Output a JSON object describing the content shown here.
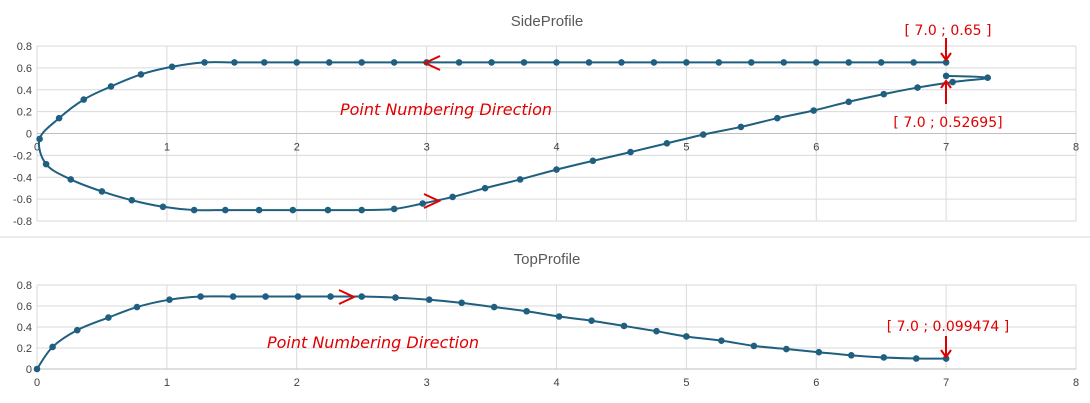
{
  "chart_data": [
    {
      "type": "scatter",
      "title": "SideProfile",
      "xlabel": "",
      "ylabel": "",
      "xlim": [
        0,
        8
      ],
      "ylim": [
        -0.8,
        0.8
      ],
      "xticks": [
        "0",
        "1",
        "2",
        "3",
        "4",
        "5",
        "6",
        "7",
        "8"
      ],
      "yticks": [
        "-0.8",
        "-0.6",
        "-0.4",
        "-0.2",
        "0",
        "0.2",
        "0.4",
        "0.6",
        "0.8"
      ],
      "grid": true,
      "legend": "none",
      "color": "#1f5f7f",
      "series": [
        {
          "points": [
            [
              7.0,
              0.65
            ],
            [
              6.75,
              0.65
            ],
            [
              6.5,
              0.65
            ],
            [
              6.25,
              0.65
            ],
            [
              6.0,
              0.65
            ],
            [
              5.75,
              0.65
            ],
            [
              5.5,
              0.65
            ],
            [
              5.25,
              0.65
            ],
            [
              5.0,
              0.65
            ],
            [
              4.75,
              0.65
            ],
            [
              4.5,
              0.65
            ],
            [
              4.25,
              0.65
            ],
            [
              4.0,
              0.65
            ],
            [
              3.75,
              0.65
            ],
            [
              3.5,
              0.65
            ],
            [
              3.25,
              0.65
            ],
            [
              3.0,
              0.65
            ],
            [
              2.75,
              0.65
            ],
            [
              2.5,
              0.65
            ],
            [
              2.25,
              0.65
            ],
            [
              2.0,
              0.65
            ],
            [
              1.75,
              0.65
            ],
            [
              1.52,
              0.65
            ],
            [
              1.29,
              0.65
            ],
            [
              1.04,
              0.61
            ],
            [
              0.8,
              0.54
            ],
            [
              0.57,
              0.43
            ],
            [
              0.36,
              0.31
            ],
            [
              0.17,
              0.14
            ],
            [
              0.02,
              -0.05
            ],
            [
              0.07,
              -0.28
            ],
            [
              0.26,
              -0.42
            ],
            [
              0.5,
              -0.53
            ],
            [
              0.73,
              -0.61
            ],
            [
              0.97,
              -0.67
            ],
            [
              1.21,
              -0.7
            ],
            [
              1.45,
              -0.7
            ],
            [
              1.71,
              -0.7
            ],
            [
              1.97,
              -0.7
            ],
            [
              2.24,
              -0.7
            ],
            [
              2.5,
              -0.7
            ],
            [
              2.75,
              -0.69
            ],
            [
              2.97,
              -0.64
            ],
            [
              3.2,
              -0.58
            ],
            [
              3.45,
              -0.5
            ],
            [
              3.72,
              -0.42
            ],
            [
              4.0,
              -0.33
            ],
            [
              4.28,
              -0.25
            ],
            [
              4.57,
              -0.17
            ],
            [
              4.85,
              -0.09
            ],
            [
              5.13,
              -0.01
            ],
            [
              5.42,
              0.06
            ],
            [
              5.7,
              0.14
            ],
            [
              5.98,
              0.21
            ],
            [
              6.25,
              0.29
            ],
            [
              6.52,
              0.36
            ],
            [
              6.78,
              0.42
            ],
            [
              7.05,
              0.47
            ],
            [
              7.32,
              0.51
            ],
            [
              7.0,
              0.52695
            ]
          ]
        }
      ],
      "annotations": [
        {
          "text": "[ 7.0 ; 0.65 ]"
        },
        {
          "text": "[ 7.0 ; 0.52695]"
        },
        {
          "text": "Point Numbering Direction"
        }
      ]
    },
    {
      "type": "scatter",
      "title": "TopProfile",
      "xlabel": "",
      "ylabel": "",
      "xlim": [
        0,
        8
      ],
      "ylim": [
        0,
        0.8
      ],
      "xticks": [
        "0",
        "1",
        "2",
        "3",
        "4",
        "5",
        "6",
        "7",
        "8"
      ],
      "yticks": [
        "0",
        "0.2",
        "0.4",
        "0.6",
        "0.8"
      ],
      "grid": true,
      "legend": "none",
      "color": "#1f5f7f",
      "series": [
        {
          "points": [
            [
              0.0,
              0.0
            ],
            [
              0.12,
              0.21
            ],
            [
              0.31,
              0.37
            ],
            [
              0.55,
              0.49
            ],
            [
              0.77,
              0.59
            ],
            [
              1.02,
              0.66
            ],
            [
              1.26,
              0.69
            ],
            [
              1.51,
              0.69
            ],
            [
              1.76,
              0.69
            ],
            [
              2.01,
              0.69
            ],
            [
              2.26,
              0.69
            ],
            [
              2.5,
              0.69
            ],
            [
              2.76,
              0.68
            ],
            [
              3.02,
              0.66
            ],
            [
              3.27,
              0.63
            ],
            [
              3.52,
              0.59
            ],
            [
              3.77,
              0.55
            ],
            [
              4.02,
              0.5
            ],
            [
              4.27,
              0.46
            ],
            [
              4.52,
              0.41
            ],
            [
              4.77,
              0.36
            ],
            [
              5.0,
              0.31
            ],
            [
              5.27,
              0.27
            ],
            [
              5.52,
              0.22
            ],
            [
              5.77,
              0.19
            ],
            [
              6.02,
              0.16
            ],
            [
              6.27,
              0.13
            ],
            [
              6.52,
              0.11
            ],
            [
              6.77,
              0.1
            ],
            [
              7.0,
              0.099474
            ]
          ]
        }
      ],
      "annotations": [
        {
          "text": "[ 7.0 ; 0.099474 ]"
        },
        {
          "text": "Point Numbering Direction"
        }
      ]
    }
  ]
}
